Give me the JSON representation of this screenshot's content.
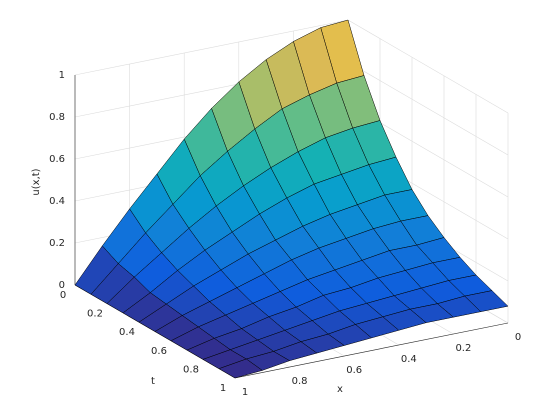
{
  "chart_data": {
    "type": "surface",
    "x": [
      0,
      0.1,
      0.2,
      0.3,
      0.4,
      0.5,
      0.6,
      0.7,
      0.8,
      0.9,
      1
    ],
    "t": [
      0,
      0.1,
      0.2,
      0.3,
      0.4,
      0.5,
      0.6,
      0.7,
      0.8,
      0.9,
      1
    ],
    "z": [
      [
        1,
        0.99,
        0.95,
        0.89,
        0.81,
        0.71,
        0.59,
        0.45,
        0.31,
        0.16,
        0
      ],
      [
        0.78,
        0.77,
        0.74,
        0.7,
        0.63,
        0.55,
        0.46,
        0.35,
        0.24,
        0.12,
        0
      ],
      [
        0.61,
        0.6,
        0.58,
        0.54,
        0.49,
        0.43,
        0.36,
        0.28,
        0.19,
        0.1,
        0
      ],
      [
        0.48,
        0.47,
        0.45,
        0.43,
        0.39,
        0.34,
        0.28,
        0.22,
        0.15,
        0.07,
        0
      ],
      [
        0.37,
        0.37,
        0.35,
        0.33,
        0.3,
        0.26,
        0.22,
        0.17,
        0.12,
        0.06,
        0
      ],
      [
        0.29,
        0.29,
        0.28,
        0.26,
        0.24,
        0.21,
        0.17,
        0.13,
        0.09,
        0.05,
        0
      ],
      [
        0.23,
        0.22,
        0.22,
        0.2,
        0.18,
        0.16,
        0.13,
        0.1,
        0.07,
        0.04,
        0
      ],
      [
        0.18,
        0.18,
        0.17,
        0.16,
        0.14,
        0.13,
        0.1,
        0.08,
        0.05,
        0.03,
        0
      ],
      [
        0.14,
        0.14,
        0.13,
        0.12,
        0.11,
        0.1,
        0.08,
        0.06,
        0.04,
        0.02,
        0
      ],
      [
        0.11,
        0.11,
        0.1,
        0.1,
        0.09,
        0.08,
        0.06,
        0.05,
        0.03,
        0.02,
        0
      ],
      [
        0.08,
        0.08,
        0.08,
        0.08,
        0.07,
        0.06,
        0.05,
        0.04,
        0.03,
        0.01,
        0
      ]
    ],
    "xlim": [
      0,
      1
    ],
    "tlim": [
      0,
      1
    ],
    "zlim": [
      0,
      1
    ],
    "xticks": [
      0,
      0.2,
      0.4,
      0.6,
      0.8,
      1
    ],
    "tticks": [
      0,
      0.2,
      0.4,
      0.6,
      0.8,
      1
    ],
    "zticks": [
      0,
      0.2,
      0.4,
      0.6,
      0.8,
      1
    ],
    "xlabel": "x",
    "ylabel": "t",
    "zlabel": "u(x,t)",
    "grid": true,
    "colormap": "parula"
  }
}
